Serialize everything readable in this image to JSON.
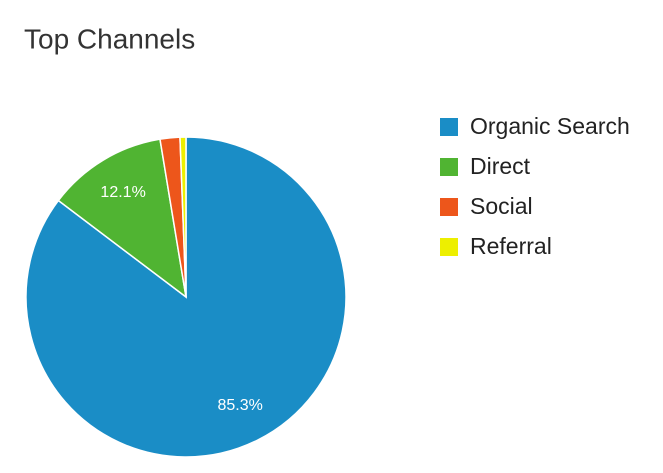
{
  "chart_data": {
    "type": "pie",
    "title": "Top Channels",
    "categories": [
      "Organic Search",
      "Direct",
      "Social",
      "Referral"
    ],
    "values": [
      85.3,
      12.1,
      2.0,
      0.6
    ],
    "value_labels": [
      "85.3%",
      "12.1%",
      null,
      null
    ],
    "colors": [
      "#1a8dc6",
      "#50b432",
      "#ed561b",
      "#edef00"
    ],
    "legend": "right"
  }
}
